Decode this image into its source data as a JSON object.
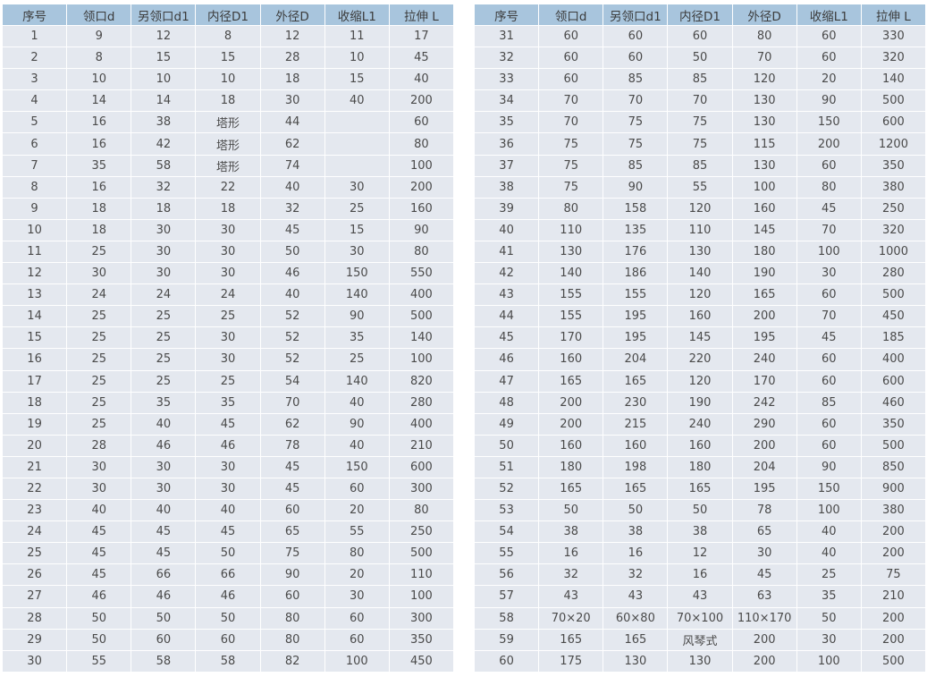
{
  "tables": [
    {
      "headers": [
        "序号",
        "领口d",
        "另领口d1",
        "内径D1",
        "外径D",
        "收缩L1",
        "拉伸 L"
      ],
      "rows": [
        [
          "1",
          "9",
          "12",
          "8",
          "12",
          "11",
          "17"
        ],
        [
          "2",
          "8",
          "15",
          "15",
          "28",
          "10",
          "45"
        ],
        [
          "3",
          "10",
          "10",
          "10",
          "18",
          "15",
          "40"
        ],
        [
          "4",
          "14",
          "14",
          "18",
          "30",
          "40",
          "200"
        ],
        [
          "5",
          "16",
          "38",
          "塔形",
          "44",
          "",
          "60"
        ],
        [
          "6",
          "16",
          "42",
          "塔形",
          "62",
          "",
          "80"
        ],
        [
          "7",
          "35",
          "58",
          "塔形",
          "74",
          "",
          "100"
        ],
        [
          "8",
          "16",
          "32",
          "22",
          "40",
          "30",
          "200"
        ],
        [
          "9",
          "18",
          "18",
          "18",
          "32",
          "25",
          "160"
        ],
        [
          "10",
          "18",
          "30",
          "30",
          "45",
          "15",
          "90"
        ],
        [
          "11",
          "25",
          "30",
          "30",
          "50",
          "30",
          "80"
        ],
        [
          "12",
          "30",
          "30",
          "30",
          "46",
          "150",
          "550"
        ],
        [
          "13",
          "24",
          "24",
          "24",
          "40",
          "140",
          "400"
        ],
        [
          "14",
          "25",
          "25",
          "25",
          "52",
          "90",
          "500"
        ],
        [
          "15",
          "25",
          "25",
          "30",
          "52",
          "35",
          "140"
        ],
        [
          "16",
          "25",
          "25",
          "30",
          "52",
          "25",
          "100"
        ],
        [
          "17",
          "25",
          "25",
          "25",
          "54",
          "140",
          "820"
        ],
        [
          "18",
          "25",
          "35",
          "35",
          "70",
          "40",
          "280"
        ],
        [
          "19",
          "25",
          "40",
          "45",
          "62",
          "90",
          "400"
        ],
        [
          "20",
          "28",
          "46",
          "46",
          "78",
          "40",
          "210"
        ],
        [
          "21",
          "30",
          "30",
          "30",
          "45",
          "150",
          "600"
        ],
        [
          "22",
          "30",
          "30",
          "30",
          "45",
          "60",
          "300"
        ],
        [
          "23",
          "40",
          "40",
          "40",
          "60",
          "20",
          "80"
        ],
        [
          "24",
          "45",
          "45",
          "45",
          "65",
          "55",
          "250"
        ],
        [
          "25",
          "45",
          "45",
          "50",
          "75",
          "80",
          "500"
        ],
        [
          "26",
          "45",
          "66",
          "66",
          "90",
          "20",
          "110"
        ],
        [
          "27",
          "46",
          "46",
          "46",
          "60",
          "30",
          "100"
        ],
        [
          "28",
          "50",
          "50",
          "50",
          "80",
          "60",
          "300"
        ],
        [
          "29",
          "50",
          "60",
          "60",
          "80",
          "60",
          "350"
        ],
        [
          "30",
          "55",
          "58",
          "58",
          "82",
          "100",
          "450"
        ]
      ]
    },
    {
      "headers": [
        "序号",
        "领口d",
        "另领口d1",
        "内径D1",
        "外径D",
        "收缩L1",
        "拉伸 L"
      ],
      "rows": [
        [
          "31",
          "60",
          "60",
          "60",
          "80",
          "60",
          "330"
        ],
        [
          "32",
          "60",
          "60",
          "50",
          "70",
          "60",
          "320"
        ],
        [
          "33",
          "60",
          "85",
          "85",
          "120",
          "20",
          "140"
        ],
        [
          "34",
          "70",
          "70",
          "70",
          "130",
          "90",
          "500"
        ],
        [
          "35",
          "70",
          "75",
          "75",
          "130",
          "150",
          "600"
        ],
        [
          "36",
          "75",
          "75",
          "75",
          "115",
          "200",
          "1200"
        ],
        [
          "37",
          "75",
          "85",
          "85",
          "130",
          "60",
          "350"
        ],
        [
          "38",
          "75",
          "90",
          "55",
          "100",
          "80",
          "380"
        ],
        [
          "39",
          "80",
          "158",
          "120",
          "160",
          "45",
          "250"
        ],
        [
          "40",
          "110",
          "135",
          "110",
          "145",
          "70",
          "320"
        ],
        [
          "41",
          "130",
          "176",
          "130",
          "180",
          "100",
          "1000"
        ],
        [
          "42",
          "140",
          "186",
          "140",
          "190",
          "30",
          "280"
        ],
        [
          "43",
          "155",
          "155",
          "120",
          "165",
          "60",
          "500"
        ],
        [
          "44",
          "155",
          "195",
          "160",
          "200",
          "70",
          "450"
        ],
        [
          "45",
          "170",
          "195",
          "145",
          "195",
          "45",
          "185"
        ],
        [
          "46",
          "160",
          "204",
          "220",
          "240",
          "60",
          "400"
        ],
        [
          "47",
          "165",
          "165",
          "120",
          "170",
          "60",
          "600"
        ],
        [
          "48",
          "200",
          "230",
          "190",
          "242",
          "85",
          "460"
        ],
        [
          "49",
          "200",
          "215",
          "240",
          "290",
          "60",
          "350"
        ],
        [
          "50",
          "160",
          "160",
          "160",
          "200",
          "60",
          "500"
        ],
        [
          "51",
          "180",
          "198",
          "180",
          "204",
          "90",
          "850"
        ],
        [
          "52",
          "165",
          "165",
          "165",
          "195",
          "150",
          "900"
        ],
        [
          "53",
          "50",
          "50",
          "50",
          "78",
          "100",
          "380"
        ],
        [
          "54",
          "38",
          "38",
          "38",
          "65",
          "40",
          "200"
        ],
        [
          "55",
          "16",
          "16",
          "12",
          "30",
          "40",
          "200"
        ],
        [
          "56",
          "32",
          "32",
          "16",
          "45",
          "25",
          "75"
        ],
        [
          "57",
          "43",
          "43",
          "43",
          "63",
          "35",
          "210"
        ],
        [
          "58",
          "70×20",
          "60×80",
          "70×100",
          "110×170",
          "50",
          "200"
        ],
        [
          "59",
          "165",
          "165",
          "风琴式",
          "200",
          "30",
          "200"
        ],
        [
          "60",
          "175",
          "130",
          "130",
          "200",
          "100",
          "500"
        ]
      ]
    }
  ],
  "colors": {
    "header_bg": "#a8c5dd",
    "row_bg": "#e4e8ef",
    "grid": "#ffffff",
    "text": "#4a4a4a"
  }
}
